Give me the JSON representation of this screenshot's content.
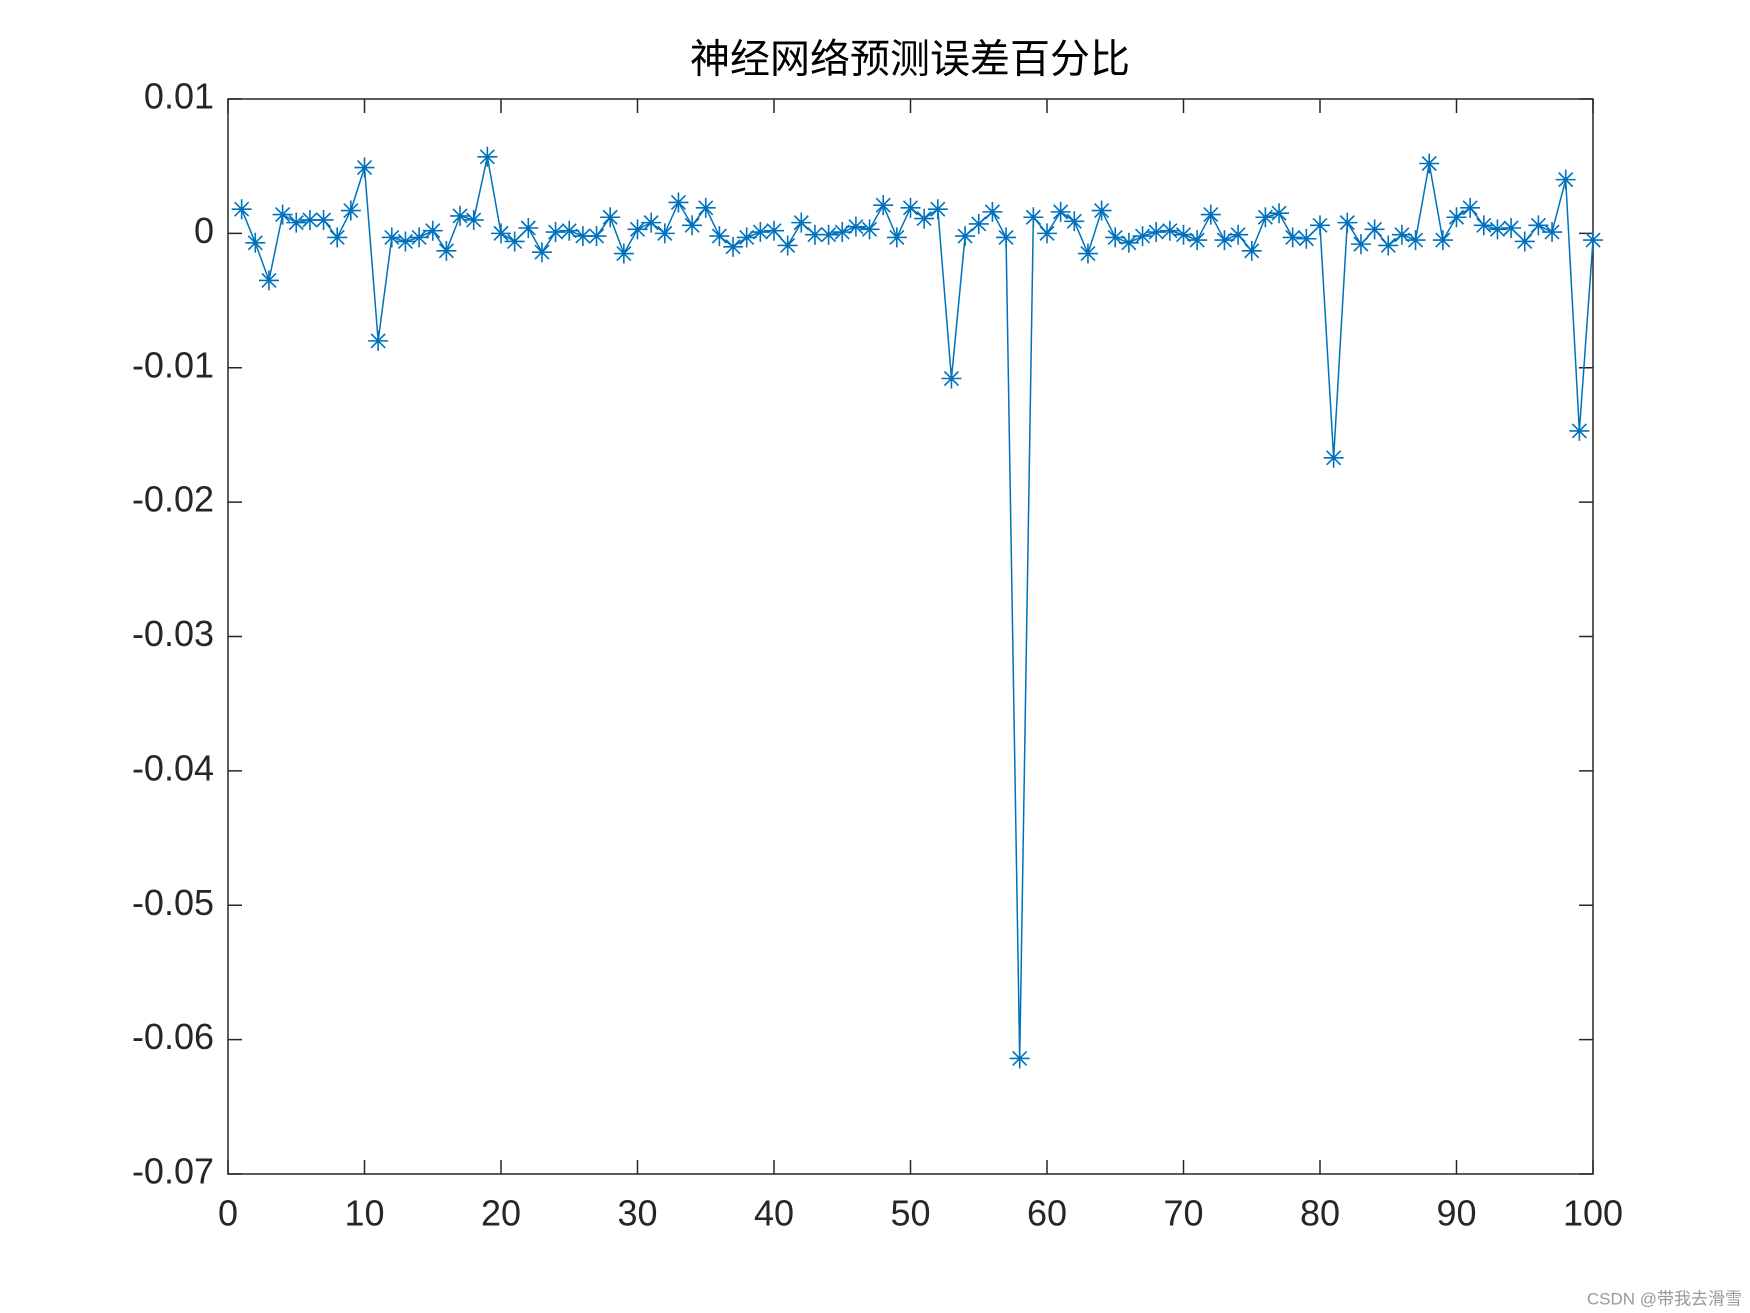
{
  "chart_data": {
    "type": "line",
    "title": "神经网络预测误差百分比",
    "watermark": "CSDN @带我去滑雪",
    "x": [
      1,
      2,
      3,
      4,
      5,
      6,
      7,
      8,
      9,
      10,
      11,
      12,
      13,
      14,
      15,
      16,
      17,
      18,
      19,
      20,
      21,
      22,
      23,
      24,
      25,
      26,
      27,
      28,
      29,
      30,
      31,
      32,
      33,
      34,
      35,
      36,
      37,
      38,
      39,
      40,
      41,
      42,
      43,
      44,
      45,
      46,
      47,
      48,
      49,
      50,
      51,
      52,
      53,
      54,
      55,
      56,
      57,
      58,
      59,
      60,
      61,
      62,
      63,
      64,
      65,
      66,
      67,
      68,
      69,
      70,
      71,
      72,
      73,
      74,
      75,
      76,
      77,
      78,
      79,
      80,
      81,
      82,
      83,
      84,
      85,
      86,
      87,
      88,
      89,
      90,
      91,
      92,
      93,
      94,
      95,
      96,
      97,
      98,
      99,
      100
    ],
    "series": [
      {
        "color": "#0072bd",
        "marker": "asterisk",
        "values": [
          0.0018,
          -0.0007,
          -0.0035,
          0.0014,
          0.0008,
          0.001,
          0.001,
          -0.0003,
          0.0017,
          0.0049,
          -0.008,
          -0.0003,
          -0.0006,
          -0.0003,
          0.0002,
          -0.0013,
          0.0013,
          0.001,
          0.0057,
          0,
          -0.0006,
          0.0004,
          -0.0014,
          0.0001,
          0.0002,
          -0.0002,
          -0.0002,
          0.0012,
          -0.0015,
          0.0003,
          0.0008,
          0,
          0.0023,
          0.0006,
          0.0019,
          -0.0002,
          -0.001,
          -0.0003,
          0.0001,
          0.0002,
          -0.0009,
          0.0008,
          -0.0001,
          -0.0001,
          0.0001,
          0.0005,
          0.0003,
          0.0021,
          -0.0003,
          0.0019,
          0.0011,
          0.0018,
          -0.0108,
          -0.0002,
          0.0007,
          0.0016,
          -0.0003,
          -0.0614,
          0.0012,
          0,
          0.0016,
          0.0009,
          -0.0015,
          0.0017,
          -0.0003,
          -0.0007,
          -0.0002,
          0.0001,
          0.0002,
          -0.0001,
          -0.0005,
          0.0014,
          -0.0005,
          -0.0001,
          -0.0013,
          0.0012,
          0.0015,
          -0.0003,
          -0.0004,
          0.0006,
          -0.0167,
          0.0008,
          -0.0008,
          0.0003,
          -0.0009,
          -0.0001,
          -0.0005,
          0.0052,
          -0.0005,
          0.0012,
          0.0019,
          0.0006,
          0.0003,
          0.0004,
          -0.0006,
          0.0006,
          0.0001,
          0.004,
          -0.0147,
          -0.0005
        ]
      }
    ],
    "xlim": [
      0,
      100
    ],
    "xticks": [
      0,
      10,
      20,
      30,
      40,
      50,
      60,
      70,
      80,
      90,
      100
    ],
    "ylim": [
      -0.07,
      0.01
    ],
    "yticks": [
      -0.07,
      -0.06,
      -0.05,
      -0.04,
      -0.03,
      -0.02,
      -0.01,
      0,
      0.01
    ],
    "grid": false
  }
}
